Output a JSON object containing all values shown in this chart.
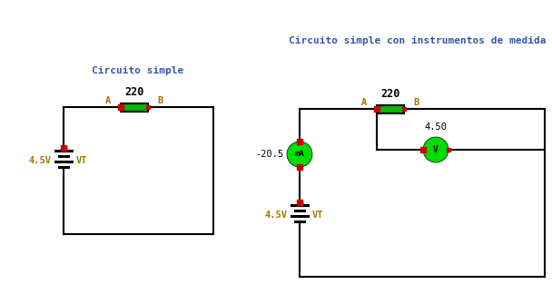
{
  "title1": "Circuito simple",
  "title2": "Circuito simple con instrumentos de medida",
  "bg_color": "#ffffff",
  "resistor_color": "#00bb00",
  "wire_color": "#000000",
  "dot_color": "#cc0000",
  "meter_color": "#00dd00",
  "label_A": "A",
  "label_B": "B",
  "label_220": "220",
  "label_battery": "4.5V",
  "label_VT": "VT",
  "label_mA": "mA",
  "label_V": "V",
  "label_current": "-20.5",
  "label_voltage": "4.50",
  "title1_color": "#3355aa",
  "title2_color": "#3355aa",
  "label_color": "#aa7700"
}
